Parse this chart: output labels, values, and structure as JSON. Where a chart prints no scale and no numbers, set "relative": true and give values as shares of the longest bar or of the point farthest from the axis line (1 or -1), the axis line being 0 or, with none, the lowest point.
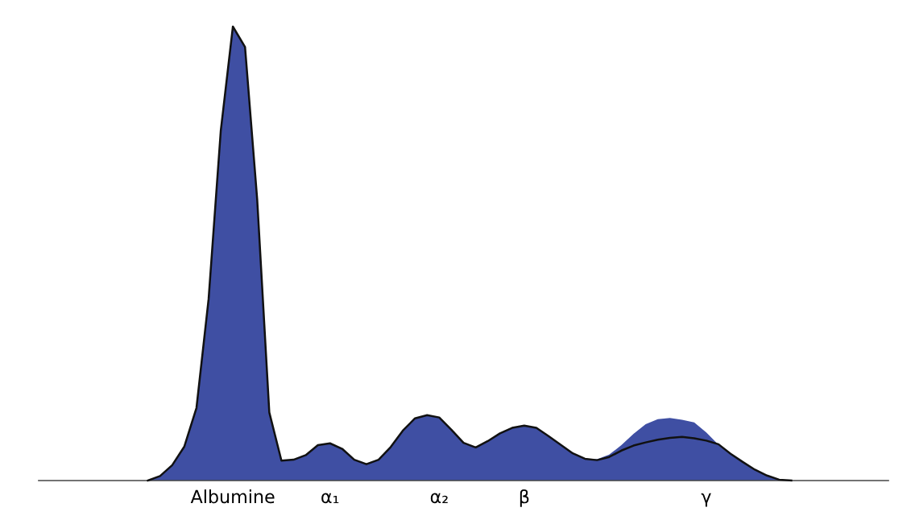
{
  "chart_data": {
    "type": "area",
    "relative": true,
    "grid": false,
    "legend": false,
    "categories": [
      null,
      null,
      null,
      null,
      null,
      null,
      null,
      null,
      null,
      null,
      null,
      null,
      null,
      null,
      null,
      null,
      "Albumine",
      null,
      null,
      null,
      null,
      null,
      null,
      null,
      "α₁",
      null,
      null,
      null,
      null,
      null,
      null,
      null,
      null,
      "α₂",
      null,
      null,
      null,
      null,
      null,
      null,
      "β",
      null,
      null,
      null,
      null,
      null,
      null,
      null,
      null,
      null,
      null,
      null,
      null,
      null,
      null,
      "γ",
      null,
      null,
      null,
      null,
      null,
      null,
      null,
      null,
      null,
      null,
      null,
      null,
      null,
      null,
      null
    ],
    "series": [
      {
        "color": "#3f4fa3",
        "values": [
          0,
          0,
          0,
          0,
          0,
          0,
          0,
          0,
          0,
          0,
          0.01,
          0.034,
          0.075,
          0.16,
          0.4,
          0.77,
          1,
          0.955,
          0.62,
          0.15,
          0.044,
          0.046,
          0.056,
          0.078,
          0.082,
          0.07,
          0.046,
          0.036,
          0.046,
          0.074,
          0.11,
          0.137,
          0.144,
          0.139,
          0.112,
          0.083,
          0.073,
          0.087,
          0.104,
          0.116,
          0.121,
          0.116,
          0.098,
          0.079,
          0.06,
          0.048,
          0.047,
          0.057,
          0.078,
          0.103,
          0.124,
          0.135,
          0.138,
          0.134,
          0.128,
          0.106,
          0.079,
          0.059,
          0.041,
          0.024,
          0.011,
          0.002,
          0,
          0,
          0,
          0,
          0,
          0,
          0,
          0,
          0
        ]
      },
      {
        "type": "line",
        "color": "#111111",
        "values": [
          null,
          null,
          null,
          null,
          null,
          null,
          null,
          null,
          null,
          0,
          0.01,
          0.034,
          0.075,
          0.16,
          0.4,
          0.77,
          1,
          0.955,
          0.62,
          0.15,
          0.044,
          0.046,
          0.056,
          0.078,
          0.082,
          0.07,
          0.046,
          0.036,
          0.046,
          0.074,
          0.11,
          0.137,
          0.144,
          0.139,
          0.112,
          0.083,
          0.073,
          0.087,
          0.104,
          0.116,
          0.121,
          0.116,
          0.098,
          0.079,
          0.06,
          0.048,
          0.045,
          0.052,
          0.066,
          0.077,
          0.084,
          0.09,
          0.094,
          0.096,
          0.093,
          0.088,
          0.08,
          0.059,
          0.041,
          0.024,
          0.011,
          0.002,
          0,
          null,
          null,
          null,
          null,
          null,
          null,
          null,
          null
        ]
      }
    ]
  }
}
